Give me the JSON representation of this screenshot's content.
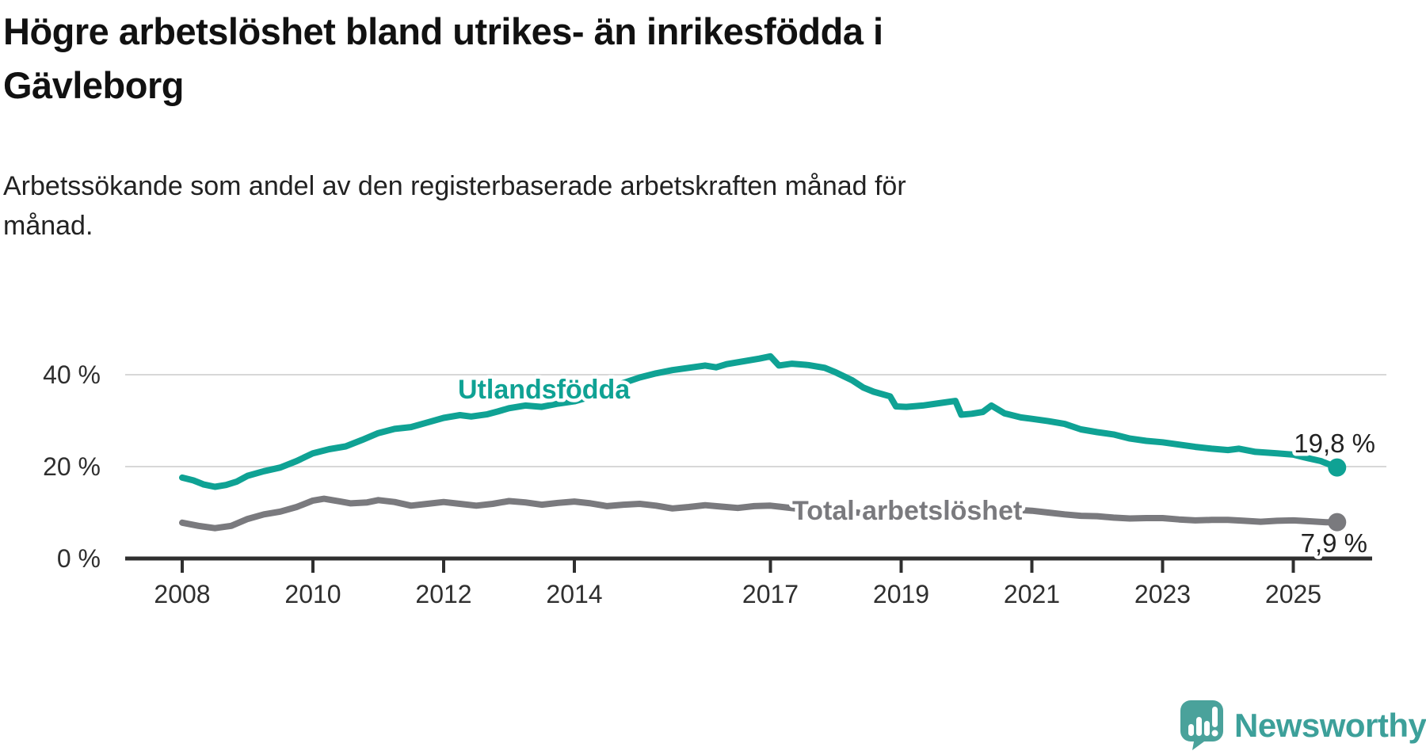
{
  "title": "Högre arbetslöshet bland utrikes- än inrikesfödda i Gävleborg",
  "title_lines": [
    "Högre arbetslöshet bland utrikes- än inrikesfödda i",
    "Gävleborg"
  ],
  "subtitle": "Arbetssökande som andel av den registerbaserade arbetskraften månad för månad.",
  "subtitle_lines": [
    "Arbetssökande som andel av den registerbaserade arbetskraften månad för",
    "månad."
  ],
  "branding": {
    "logo_text": "Newsworthy"
  },
  "colors": {
    "teal_series": "#0fa294",
    "gray_series": "#7a7a7e",
    "axis": "#2f2f2f",
    "grid": "#d8d8d8",
    "end_label_text": "#222222",
    "logo_teal": "#4aa29b",
    "logo_text_teal": "#3da09a"
  },
  "chart_data": {
    "type": "line",
    "unit": "%",
    "grid": true,
    "legend": "inline-labels",
    "xlim": [
      2007.1,
      2026.4
    ],
    "ylim": [
      0,
      47
    ],
    "x_ticks": [
      {
        "v": 2008,
        "label": "2008"
      },
      {
        "v": 2010,
        "label": "2010"
      },
      {
        "v": 2012,
        "label": "2012"
      },
      {
        "v": 2014,
        "label": "2014"
      },
      {
        "v": 2017,
        "label": "2017"
      },
      {
        "v": 2019,
        "label": "2019"
      },
      {
        "v": 2021,
        "label": "2021"
      },
      {
        "v": 2023,
        "label": "2023"
      },
      {
        "v": 2025,
        "label": "2025"
      }
    ],
    "y_ticks": [
      {
        "v": 0,
        "label": "0 %"
      },
      {
        "v": 20,
        "label": "20 %"
      },
      {
        "v": 40,
        "label": "40 %"
      }
    ],
    "series": [
      {
        "name": "Utlandsfödda",
        "end_value": 19.8,
        "end_label": "19,8 %",
        "points": [
          [
            2008.0,
            17.6
          ],
          [
            2008.17,
            17.0
          ],
          [
            2008.33,
            16.1
          ],
          [
            2008.5,
            15.6
          ],
          [
            2008.67,
            16.0
          ],
          [
            2008.83,
            16.7
          ],
          [
            2009.0,
            18.0
          ],
          [
            2009.25,
            19.0
          ],
          [
            2009.5,
            19.8
          ],
          [
            2009.75,
            21.2
          ],
          [
            2010.0,
            22.9
          ],
          [
            2010.25,
            23.8
          ],
          [
            2010.5,
            24.4
          ],
          [
            2010.75,
            25.8
          ],
          [
            2011.0,
            27.3
          ],
          [
            2011.25,
            28.2
          ],
          [
            2011.5,
            28.6
          ],
          [
            2011.75,
            29.6
          ],
          [
            2012.0,
            30.6
          ],
          [
            2012.25,
            31.2
          ],
          [
            2012.42,
            30.9
          ],
          [
            2012.67,
            31.4
          ],
          [
            2012.83,
            32.0
          ],
          [
            2013.0,
            32.7
          ],
          [
            2013.25,
            33.3
          ],
          [
            2013.5,
            33.0
          ],
          [
            2013.75,
            33.7
          ],
          [
            2014.0,
            34.2
          ],
          [
            2014.25,
            35.2
          ],
          [
            2014.5,
            36.5
          ],
          [
            2014.75,
            38.2
          ],
          [
            2015.0,
            39.4
          ],
          [
            2015.25,
            40.3
          ],
          [
            2015.5,
            41.0
          ],
          [
            2015.75,
            41.5
          ],
          [
            2016.0,
            42.0
          ],
          [
            2016.17,
            41.6
          ],
          [
            2016.33,
            42.3
          ],
          [
            2016.58,
            42.9
          ],
          [
            2016.83,
            43.5
          ],
          [
            2017.0,
            44.0
          ],
          [
            2017.13,
            42.0
          ],
          [
            2017.33,
            42.4
          ],
          [
            2017.58,
            42.1
          ],
          [
            2017.83,
            41.5
          ],
          [
            2018.0,
            40.5
          ],
          [
            2018.25,
            38.8
          ],
          [
            2018.42,
            37.2
          ],
          [
            2018.58,
            36.3
          ],
          [
            2018.83,
            35.3
          ],
          [
            2018.92,
            33.1
          ],
          [
            2019.08,
            33.0
          ],
          [
            2019.33,
            33.3
          ],
          [
            2019.58,
            33.8
          ],
          [
            2019.83,
            34.3
          ],
          [
            2019.92,
            31.3
          ],
          [
            2020.08,
            31.5
          ],
          [
            2020.25,
            31.9
          ],
          [
            2020.38,
            33.3
          ],
          [
            2020.58,
            31.6
          ],
          [
            2020.83,
            30.7
          ],
          [
            2021.0,
            30.4
          ],
          [
            2021.25,
            29.9
          ],
          [
            2021.5,
            29.3
          ],
          [
            2021.75,
            28.1
          ],
          [
            2022.0,
            27.5
          ],
          [
            2022.25,
            27.0
          ],
          [
            2022.5,
            26.1
          ],
          [
            2022.75,
            25.6
          ],
          [
            2023.0,
            25.3
          ],
          [
            2023.25,
            24.8
          ],
          [
            2023.5,
            24.3
          ],
          [
            2023.75,
            23.9
          ],
          [
            2024.0,
            23.6
          ],
          [
            2024.17,
            23.9
          ],
          [
            2024.42,
            23.2
          ],
          [
            2024.75,
            22.9
          ],
          [
            2025.0,
            22.6
          ],
          [
            2025.17,
            22.0
          ],
          [
            2025.42,
            21.2
          ],
          [
            2025.67,
            19.8
          ]
        ]
      },
      {
        "name": "Total arbetslöshet",
        "end_value": 7.9,
        "end_label": "7,9 %",
        "points": [
          [
            2008.0,
            7.8
          ],
          [
            2008.25,
            7.1
          ],
          [
            2008.5,
            6.6
          ],
          [
            2008.75,
            7.1
          ],
          [
            2009.0,
            8.6
          ],
          [
            2009.25,
            9.6
          ],
          [
            2009.5,
            10.2
          ],
          [
            2009.75,
            11.2
          ],
          [
            2010.0,
            12.6
          ],
          [
            2010.17,
            13.0
          ],
          [
            2010.42,
            12.4
          ],
          [
            2010.58,
            12.0
          ],
          [
            2010.83,
            12.2
          ],
          [
            2011.0,
            12.7
          ],
          [
            2011.25,
            12.3
          ],
          [
            2011.5,
            11.5
          ],
          [
            2011.75,
            11.9
          ],
          [
            2012.0,
            12.3
          ],
          [
            2012.25,
            11.9
          ],
          [
            2012.5,
            11.5
          ],
          [
            2012.75,
            11.9
          ],
          [
            2013.0,
            12.5
          ],
          [
            2013.25,
            12.2
          ],
          [
            2013.5,
            11.7
          ],
          [
            2013.75,
            12.1
          ],
          [
            2014.0,
            12.4
          ],
          [
            2014.25,
            12.0
          ],
          [
            2014.5,
            11.4
          ],
          [
            2014.75,
            11.7
          ],
          [
            2015.0,
            11.9
          ],
          [
            2015.25,
            11.5
          ],
          [
            2015.5,
            10.9
          ],
          [
            2015.75,
            11.2
          ],
          [
            2016.0,
            11.6
          ],
          [
            2016.25,
            11.3
          ],
          [
            2016.5,
            11.0
          ],
          [
            2016.75,
            11.4
          ],
          [
            2017.0,
            11.5
          ],
          [
            2017.25,
            11.1
          ],
          [
            2017.5,
            10.7
          ],
          [
            2017.75,
            10.6
          ],
          [
            2018.0,
            10.5
          ],
          [
            2018.25,
            10.1
          ],
          [
            2018.5,
            9.8
          ],
          [
            2018.75,
            9.9
          ],
          [
            2019.0,
            10.0
          ],
          [
            2019.25,
            9.7
          ],
          [
            2019.5,
            9.6
          ],
          [
            2019.75,
            9.8
          ],
          [
            2020.0,
            10.0
          ],
          [
            2020.25,
            10.9
          ],
          [
            2020.5,
            11.0
          ],
          [
            2020.75,
            10.6
          ],
          [
            2021.0,
            10.4
          ],
          [
            2021.25,
            10.0
          ],
          [
            2021.5,
            9.6
          ],
          [
            2021.75,
            9.3
          ],
          [
            2022.0,
            9.2
          ],
          [
            2022.25,
            8.9
          ],
          [
            2022.5,
            8.7
          ],
          [
            2022.75,
            8.8
          ],
          [
            2023.0,
            8.8
          ],
          [
            2023.25,
            8.5
          ],
          [
            2023.5,
            8.3
          ],
          [
            2023.75,
            8.4
          ],
          [
            2024.0,
            8.4
          ],
          [
            2024.25,
            8.2
          ],
          [
            2024.5,
            8.0
          ],
          [
            2024.75,
            8.2
          ],
          [
            2025.0,
            8.3
          ],
          [
            2025.25,
            8.1
          ],
          [
            2025.5,
            7.9
          ],
          [
            2025.67,
            7.9
          ]
        ]
      }
    ]
  }
}
